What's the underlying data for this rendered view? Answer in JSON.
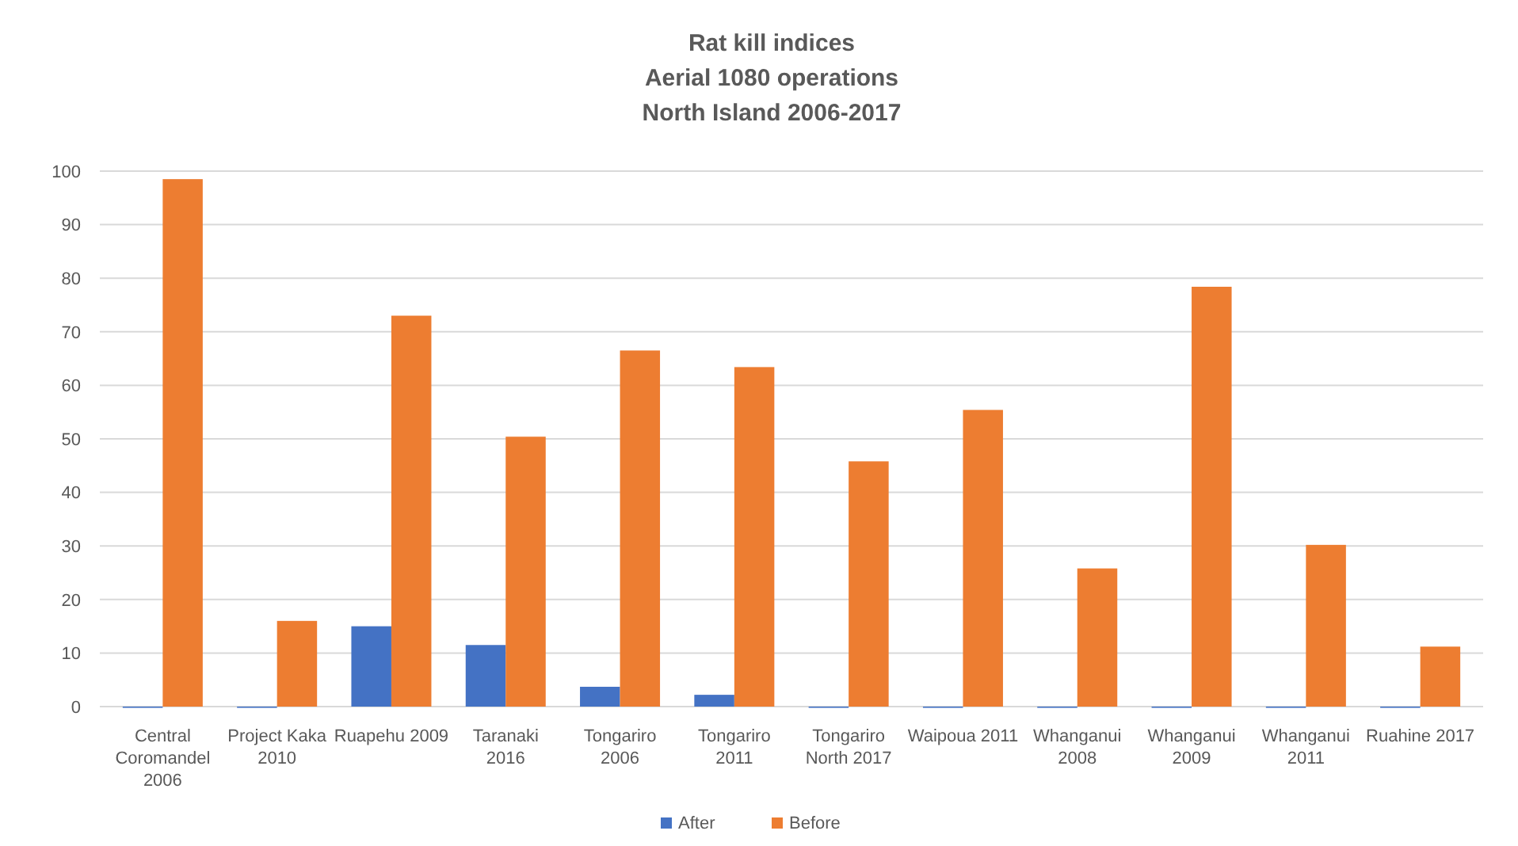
{
  "chart_data": {
    "type": "bar",
    "title": "Rat kill indices\nAerial 1080 operations\nNorth Island  2006-2017",
    "categories": [
      "Central Coromandel 2006",
      "Project Kaka 2010",
      "Ruapehu 2009",
      "Taranaki 2016",
      "Tongariro 2006",
      "Tongariro 2011",
      "Tongariro North 2017",
      "Waipoua 2011",
      "Whanganui 2008",
      "Whanganui 2009",
      "Whanganui 2011",
      "Ruahine 2017"
    ],
    "series": [
      {
        "name": "After",
        "color": "#4472c4",
        "values": [
          0,
          0,
          15,
          11.5,
          3.7,
          2.2,
          0,
          0,
          0,
          0,
          0,
          0
        ]
      },
      {
        "name": "Before",
        "color": "#ed7d31",
        "values": [
          98.5,
          16,
          73,
          50.4,
          66.5,
          63.4,
          45.8,
          55.4,
          25.8,
          78.4,
          30.2,
          11.2
        ]
      }
    ],
    "ylim": [
      0,
      100
    ],
    "yticks": [
      0,
      10,
      20,
      30,
      40,
      50,
      60,
      70,
      80,
      90,
      100
    ],
    "grid": "y",
    "legend": "bottom"
  }
}
